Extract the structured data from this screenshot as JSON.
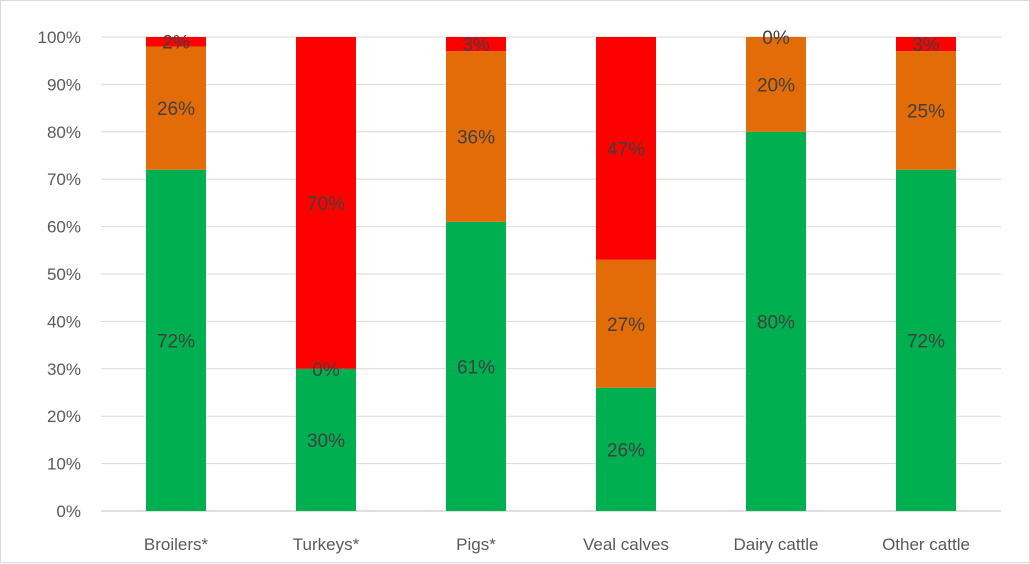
{
  "chart_data": {
    "type": "bar",
    "stacked": true,
    "categories": [
      "Broilers*",
      "Turkeys*",
      "Pigs*",
      "Veal calves",
      "Dairy cattle",
      "Other cattle"
    ],
    "series": [
      {
        "values": [
          72,
          30,
          61,
          26,
          80,
          72
        ],
        "labels": [
          "72%",
          "30%",
          "61%",
          "26%",
          "80%",
          "72%"
        ],
        "color": "#00b050"
      },
      {
        "values": [
          26,
          0,
          36,
          27,
          20,
          25
        ],
        "labels": [
          "26%",
          "0%",
          "36%",
          "27%",
          "20%",
          "25%"
        ],
        "color": "#e36c09"
      },
      {
        "values": [
          2,
          70,
          3,
          47,
          0,
          3
        ],
        "labels": [
          "2%",
          "70%",
          "3%",
          "47%",
          "0%",
          "3%"
        ],
        "color": "#ff0000"
      }
    ],
    "ylim": [
      0,
      100
    ],
    "yticks": [
      "0%",
      "10%",
      "20%",
      "30%",
      "40%",
      "50%",
      "60%",
      "70%",
      "80%",
      "90%",
      "100%"
    ],
    "grid": true,
    "legend": "none"
  }
}
